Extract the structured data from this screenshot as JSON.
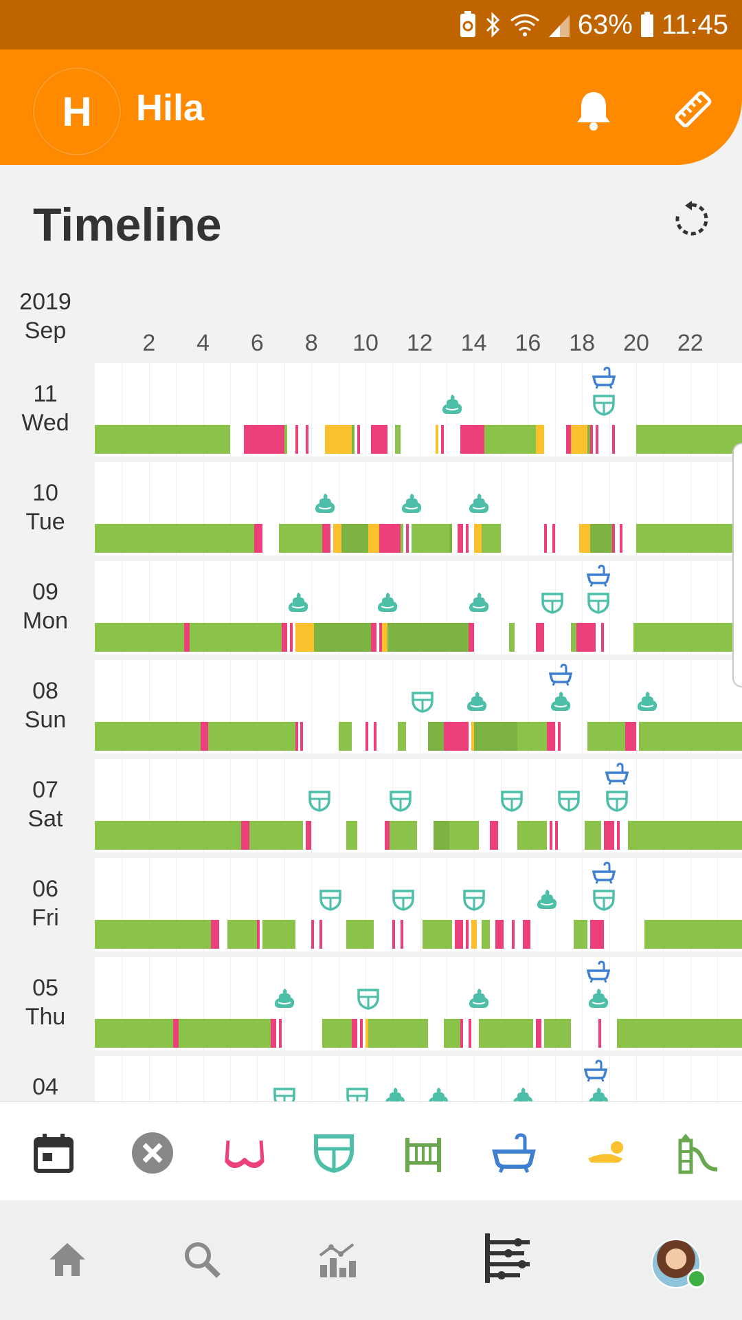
{
  "status_bar": {
    "battery": "63%",
    "time": "11:45"
  },
  "app_bar": {
    "avatar_letter": "H",
    "title": "Hila"
  },
  "page": {
    "title": "Timeline"
  },
  "timeline": {
    "year": "2019",
    "month": "Sep",
    "hours": [
      "2",
      "4",
      "6",
      "8",
      "10",
      "12",
      "14",
      "16",
      "18",
      "20",
      "22"
    ],
    "colors": {
      "sleep": "#8bc34a",
      "deep": "#7cb342",
      "feed": "#ec407a",
      "nap": "#fbc02d",
      "diaper": "#4dbfa8",
      "bath": "#3f7fd0"
    },
    "days": [
      {
        "num": "11",
        "dow": "Wed",
        "segments": [
          [
            0,
            5
          ],
          [
            5.5,
            7
          ],
          [
            7,
            7.1
          ],
          [
            7.4,
            7.5
          ],
          [
            7.8,
            7.9
          ],
          [
            8.5,
            9.5
          ],
          [
            9.5,
            9.6
          ],
          [
            9.7,
            9.8
          ],
          [
            10.2,
            10.8
          ],
          [
            11.1,
            11.3
          ],
          [
            12.6,
            12.7
          ],
          [
            12.8,
            12.9
          ],
          [
            13.5,
            14.4
          ],
          [
            14.4,
            16.3
          ],
          [
            16.3,
            16.6
          ],
          [
            17.4,
            17.6
          ],
          [
            17.6,
            18.2
          ],
          [
            18.2,
            18.3
          ],
          [
            18.3,
            18.4
          ],
          [
            18.5,
            18.6
          ],
          [
            19.1,
            19.2
          ],
          [
            20,
            24
          ]
        ],
        "seg_types": [
          "sleep",
          "feed",
          "sleep",
          "feed",
          "feed",
          "nap",
          "deep",
          "feed",
          "feed",
          "sleep",
          "nap",
          "feed",
          "feed",
          "sleep",
          "nap",
          "feed",
          "nap",
          "deep",
          "feed",
          "feed",
          "feed",
          "sleep"
        ],
        "markers": [
          {
            "t": 13.2,
            "type": "poop",
            "lane": 2
          },
          {
            "t": 18.8,
            "type": "bath",
            "lane": 1
          },
          {
            "t": 18.8,
            "type": "diaper",
            "lane": 2
          }
        ]
      },
      {
        "num": "10",
        "dow": "Tue",
        "segments": [
          [
            0,
            5.9
          ],
          [
            5.9,
            6.1
          ],
          [
            6.1,
            6.2
          ],
          [
            6.8,
            8.4
          ],
          [
            8.4,
            8.7
          ],
          [
            8.8,
            9.1
          ],
          [
            9.1,
            10.1
          ],
          [
            10.1,
            10.5
          ],
          [
            10.5,
            10.9
          ],
          [
            10.9,
            11.3
          ],
          [
            11.3,
            11.4
          ],
          [
            11.5,
            11.6
          ],
          [
            11.7,
            13.1
          ],
          [
            13.1,
            13.2
          ],
          [
            13.4,
            13.6
          ],
          [
            13.7,
            13.8
          ],
          [
            14,
            14.3
          ],
          [
            14.3,
            15
          ],
          [
            16.6,
            16.7
          ],
          [
            16.9,
            17
          ],
          [
            17.9,
            18.3
          ],
          [
            18.3,
            19.1
          ],
          [
            19.1,
            19.2
          ],
          [
            19.4,
            19.5
          ],
          [
            20,
            24
          ]
        ],
        "seg_types": [
          "sleep",
          "feed",
          "feed",
          "sleep",
          "feed",
          "nap",
          "deep",
          "nap",
          "feed",
          "feed",
          "sleep",
          "feed",
          "sleep",
          "deep",
          "feed",
          "feed",
          "nap",
          "sleep",
          "feed",
          "feed",
          "nap",
          "deep",
          "feed",
          "feed",
          "sleep"
        ],
        "markers": [
          {
            "t": 8.5,
            "type": "poop",
            "lane": 2
          },
          {
            "t": 11.7,
            "type": "poop",
            "lane": 2
          },
          {
            "t": 14.2,
            "type": "poop",
            "lane": 2
          }
        ]
      },
      {
        "num": "09",
        "dow": "Mon",
        "segments": [
          [
            0,
            3.3
          ],
          [
            3.3,
            3.5
          ],
          [
            3.5,
            6.9
          ],
          [
            6.9,
            7.1
          ],
          [
            7.2,
            7.3
          ],
          [
            7.4,
            8.1
          ],
          [
            8.1,
            10.2
          ],
          [
            10.2,
            10.4
          ],
          [
            10.5,
            10.6
          ],
          [
            10.6,
            10.8
          ],
          [
            10.8,
            13.8
          ],
          [
            13.8,
            14
          ],
          [
            15.3,
            15.5
          ],
          [
            16.3,
            16.6
          ],
          [
            17.6,
            17.8
          ],
          [
            17.8,
            18
          ],
          [
            18,
            18.3
          ],
          [
            18.3,
            18.5
          ],
          [
            18.7,
            18.8
          ],
          [
            19.9,
            24
          ]
        ],
        "seg_types": [
          "sleep",
          "feed",
          "sleep",
          "feed",
          "feed",
          "nap",
          "deep",
          "feed",
          "feed",
          "nap",
          "deep",
          "feed",
          "sleep",
          "feed",
          "sleep",
          "feed",
          "feed",
          "feed",
          "feed",
          "sleep"
        ],
        "markers": [
          {
            "t": 7.5,
            "type": "poop",
            "lane": 2
          },
          {
            "t": 10.8,
            "type": "poop",
            "lane": 2
          },
          {
            "t": 14.2,
            "type": "poop",
            "lane": 2
          },
          {
            "t": 16.9,
            "type": "diaper",
            "lane": 2
          },
          {
            "t": 18.6,
            "type": "bath",
            "lane": 1
          },
          {
            "t": 18.6,
            "type": "diaper",
            "lane": 2
          }
        ]
      },
      {
        "num": "08",
        "dow": "Sun",
        "segments": [
          [
            0,
            3.9
          ],
          [
            3.9,
            4.2
          ],
          [
            4.2,
            7.4
          ],
          [
            7.4,
            7.5
          ],
          [
            7.6,
            7.7
          ],
          [
            9,
            9.5
          ],
          [
            10,
            10.1
          ],
          [
            10.3,
            10.4
          ],
          [
            11.2,
            11.5
          ],
          [
            12.3,
            12.9
          ],
          [
            12.9,
            13.3
          ],
          [
            13.3,
            13.8
          ],
          [
            13.9,
            14
          ],
          [
            14,
            15.6
          ],
          [
            15.6,
            16.7
          ],
          [
            16.7,
            17
          ],
          [
            17.1,
            17.2
          ],
          [
            18.2,
            19.6
          ],
          [
            19.6,
            19.8
          ],
          [
            19.8,
            20
          ],
          [
            20.1,
            24
          ]
        ],
        "seg_types": [
          "sleep",
          "feed",
          "sleep",
          "feed",
          "feed",
          "sleep",
          "feed",
          "feed",
          "sleep",
          "deep",
          "feed",
          "feed",
          "nap",
          "deep",
          "sleep",
          "feed",
          "feed",
          "sleep",
          "feed",
          "feed",
          "sleep"
        ],
        "markers": [
          {
            "t": 12.1,
            "type": "diaper",
            "lane": 2
          },
          {
            "t": 14.1,
            "type": "poop",
            "lane": 2
          },
          {
            "t": 17.2,
            "type": "bath",
            "lane": 1
          },
          {
            "t": 17.2,
            "type": "poop",
            "lane": 2
          },
          {
            "t": 20.4,
            "type": "poop",
            "lane": 2
          }
        ]
      },
      {
        "num": "07",
        "dow": "Sat",
        "segments": [
          [
            0,
            5.4
          ],
          [
            5.4,
            5.7
          ],
          [
            5.7,
            7.7
          ],
          [
            7.8,
            8
          ],
          [
            9.3,
            9.7
          ],
          [
            10.7,
            10.9
          ],
          [
            10.9,
            11.9
          ],
          [
            12.5,
            13.1
          ],
          [
            13.1,
            14.2
          ],
          [
            14.6,
            14.9
          ],
          [
            15.6,
            16.7
          ],
          [
            16.8,
            16.9
          ],
          [
            17,
            17.1
          ],
          [
            18.1,
            18.7
          ],
          [
            18.8,
            19
          ],
          [
            19,
            19.2
          ],
          [
            19.3,
            19.4
          ],
          [
            19.7,
            24
          ]
        ],
        "seg_types": [
          "sleep",
          "feed",
          "sleep",
          "feed",
          "sleep",
          "feed",
          "sleep",
          "deep",
          "sleep",
          "feed",
          "sleep",
          "feed",
          "feed",
          "sleep",
          "feed",
          "feed",
          "feed",
          "sleep"
        ],
        "markers": [
          {
            "t": 8.3,
            "type": "diaper",
            "lane": 2
          },
          {
            "t": 11.3,
            "type": "diaper",
            "lane": 2
          },
          {
            "t": 15.4,
            "type": "diaper",
            "lane": 2
          },
          {
            "t": 17.5,
            "type": "diaper",
            "lane": 2
          },
          {
            "t": 19.3,
            "type": "bath",
            "lane": 1
          },
          {
            "t": 19.3,
            "type": "diaper",
            "lane": 2
          }
        ]
      },
      {
        "num": "06",
        "dow": "Fri",
        "segments": [
          [
            0,
            4.3
          ],
          [
            4.3,
            4.6
          ],
          [
            4.9,
            6
          ],
          [
            6,
            6.1
          ],
          [
            6.2,
            7.4
          ],
          [
            8,
            8.1
          ],
          [
            8.3,
            8.4
          ],
          [
            9.3,
            10.3
          ],
          [
            11,
            11.1
          ],
          [
            11.3,
            11.4
          ],
          [
            12.1,
            13.2
          ],
          [
            13.3,
            13.6
          ],
          [
            13.7,
            13.8
          ],
          [
            13.9,
            14.1
          ],
          [
            14.3,
            14.6
          ],
          [
            14.8,
            15.1
          ],
          [
            15.4,
            15.5
          ],
          [
            15.8,
            16.1
          ],
          [
            17.7,
            18.2
          ],
          [
            18.3,
            18.6
          ],
          [
            18.6,
            18.8
          ],
          [
            20.3,
            24
          ]
        ],
        "seg_types": [
          "sleep",
          "feed",
          "sleep",
          "feed",
          "sleep",
          "feed",
          "feed",
          "sleep",
          "feed",
          "feed",
          "sleep",
          "feed",
          "feed",
          "nap",
          "sleep",
          "feed",
          "feed",
          "feed",
          "sleep",
          "feed",
          "feed",
          "sleep"
        ],
        "markers": [
          {
            "t": 8.7,
            "type": "diaper",
            "lane": 2
          },
          {
            "t": 11.4,
            "type": "diaper",
            "lane": 2
          },
          {
            "t": 14,
            "type": "diaper",
            "lane": 2
          },
          {
            "t": 16.7,
            "type": "poop",
            "lane": 2
          },
          {
            "t": 18.8,
            "type": "bath",
            "lane": 1
          },
          {
            "t": 18.8,
            "type": "diaper",
            "lane": 2
          }
        ]
      },
      {
        "num": "05",
        "dow": "Thu",
        "segments": [
          [
            0,
            2.9
          ],
          [
            2.9,
            3.1
          ],
          [
            3.1,
            6.5
          ],
          [
            6.5,
            6.7
          ],
          [
            6.8,
            6.9
          ],
          [
            8.4,
            9.5
          ],
          [
            9.5,
            9.7
          ],
          [
            9.8,
            9.9
          ],
          [
            10,
            10.1
          ],
          [
            10.1,
            12.3
          ],
          [
            12.9,
            13.5
          ],
          [
            13.5,
            13.6
          ],
          [
            13.8,
            13.9
          ],
          [
            14.2,
            16.2
          ],
          [
            16.3,
            16.5
          ],
          [
            16.6,
            17.6
          ],
          [
            18.6,
            18.7
          ],
          [
            19.3,
            24
          ]
        ],
        "seg_types": [
          "sleep",
          "feed",
          "sleep",
          "feed",
          "feed",
          "sleep",
          "feed",
          "feed",
          "nap",
          "sleep",
          "sleep",
          "feed",
          "feed",
          "sleep",
          "feed",
          "sleep",
          "feed",
          "sleep"
        ],
        "markers": [
          {
            "t": 7,
            "type": "poop",
            "lane": 2
          },
          {
            "t": 10.1,
            "type": "diaper",
            "lane": 2
          },
          {
            "t": 14.2,
            "type": "poop",
            "lane": 2
          },
          {
            "t": 18.6,
            "type": "bath",
            "lane": 1
          },
          {
            "t": 18.6,
            "type": "poop",
            "lane": 2
          }
        ]
      },
      {
        "num": "04",
        "dow": "",
        "segments": [],
        "seg_types": [],
        "markers": [
          {
            "t": 18.5,
            "type": "bath",
            "lane": 1
          },
          {
            "t": 7,
            "type": "diaper",
            "lane": 2
          },
          {
            "t": 9.7,
            "type": "diaper",
            "lane": 2
          },
          {
            "t": 11.1,
            "type": "poop",
            "lane": 2
          },
          {
            "t": 12.7,
            "type": "poop",
            "lane": 2
          },
          {
            "t": 15.8,
            "type": "poop",
            "lane": 2
          },
          {
            "t": 18.6,
            "type": "poop",
            "lane": 2
          }
        ]
      }
    ]
  },
  "toolbar": {
    "items": [
      "calendar-icon",
      "close-icon",
      "bra-icon",
      "diaper-icon",
      "crib-icon",
      "bathtub-icon",
      "tummy-time-icon",
      "playground-icon"
    ]
  },
  "nav": {
    "items": [
      "home-icon",
      "search-icon",
      "stats-icon",
      "timeline-icon",
      "profile-avatar"
    ]
  }
}
